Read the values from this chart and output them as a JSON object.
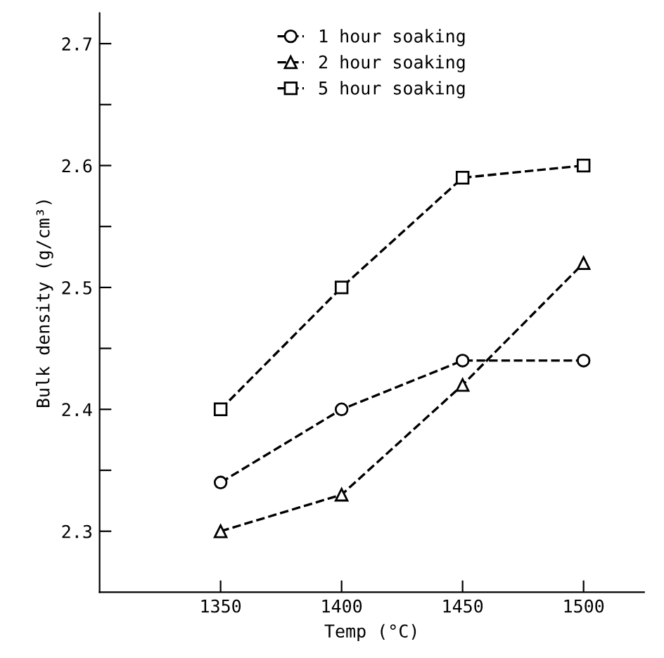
{
  "chart_data": {
    "type": "line",
    "xlabel": "Temp (°C)",
    "ylabel": "Bulk density (g/cm³)",
    "xlim": [
      1300,
      1525
    ],
    "xticks": [
      1350,
      1400,
      1450,
      1500
    ],
    "ylim": [
      2.25,
      2.725
    ],
    "yticks": [
      2.3,
      {
        "value": 2.35,
        "label": null
      },
      2.4,
      {
        "value": 2.45,
        "label": null
      },
      2.5,
      {
        "value": 2.55,
        "label": null
      },
      2.6,
      {
        "value": 2.65,
        "label": null
      },
      2.7
    ],
    "grid": false,
    "legend": "top",
    "line_style": "dashed",
    "series": [
      {
        "name": "1 hour soaking",
        "color": "#000000",
        "marker": "circle",
        "x": [
          1350,
          1400,
          1450,
          1500
        ],
        "values": [
          2.34,
          2.4,
          2.44,
          2.44
        ]
      },
      {
        "name": "2 hour soaking",
        "color": "#000000",
        "marker": "triangle",
        "x": [
          1350,
          1400,
          1450,
          1500
        ],
        "values": [
          2.3,
          2.33,
          2.42,
          2.52
        ]
      },
      {
        "name": "5 hour soaking",
        "color": "#000000",
        "marker": "square",
        "x": [
          1350,
          1400,
          1450,
          1500
        ],
        "values": [
          2.4,
          2.5,
          2.59,
          2.6
        ]
      }
    ]
  }
}
